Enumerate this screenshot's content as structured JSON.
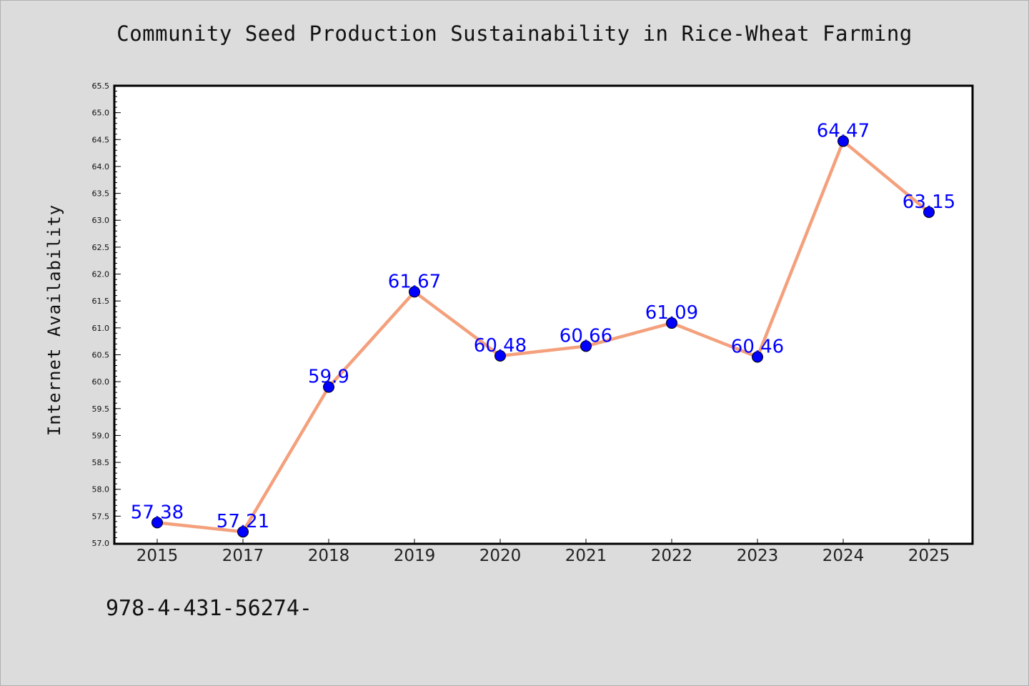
{
  "chart_data": {
    "type": "line",
    "title": "Community Seed Production Sustainability in Rice-Wheat Farming",
    "xlabel": "",
    "ylabel": "Internet Availability",
    "categories": [
      "2015",
      "2017",
      "2018",
      "2019",
      "2020",
      "2021",
      "2022",
      "2023",
      "2024",
      "2025"
    ],
    "series": [
      {
        "values": [
          57.38,
          57.21,
          59.9,
          61.67,
          60.48,
          60.66,
          61.09,
          60.46,
          64.47,
          63.15
        ]
      }
    ],
    "data_labels": [
      "57.38",
      "57.21",
      "59.9",
      "61.67",
      "60.48",
      "60.66",
      "61.09",
      "60.46",
      "64.47",
      "63.15"
    ],
    "ylim": [
      57.0,
      65.5
    ],
    "yticks": [
      "57.0",
      "57.5",
      "58.0",
      "58.5",
      "59.0",
      "59.5",
      "60.0",
      "60.5",
      "61.0",
      "61.5",
      "62.0",
      "62.5",
      "63.0",
      "63.5",
      "64.0",
      "64.5",
      "65.0",
      "65.5"
    ],
    "grid": false,
    "colors": {
      "line": "#f4a07c",
      "marker": "#0000ff",
      "label": "#0000ff"
    }
  },
  "footer": {
    "code": "978-4-431-56274-"
  }
}
